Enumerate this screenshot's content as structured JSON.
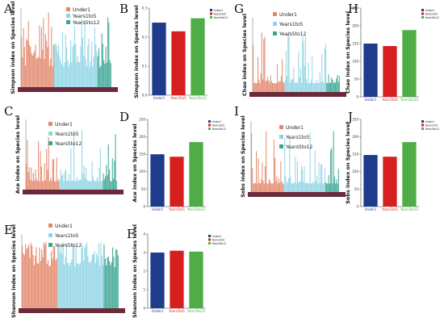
{
  "chart_data": [
    {
      "panel": "A",
      "type": "bar",
      "ylabel": "Simpson index on Species level",
      "legend": [
        "Under1",
        "Years1to5",
        "Years5to12"
      ],
      "colors": [
        "#e4866a",
        "#8fd4e4",
        "#3aa592"
      ],
      "legend_placement": "top"
    },
    {
      "panel": "B",
      "type": "bar",
      "ylabel": "Simpson index on Species level",
      "categories": [
        "Under1",
        "Years1to5",
        "Years5to12"
      ],
      "values": [
        0.25,
        0.22,
        0.265
      ],
      "colors": [
        "#1f3b8c",
        "#d61f1f",
        "#4fad47"
      ],
      "yticks": [
        "0.0",
        "0.1",
        "0.2",
        "0.3"
      ],
      "ylim": [
        0,
        0.3
      ],
      "legend": [
        "Under1",
        "Years1to5",
        "Years5to12"
      ],
      "legend_placement": "top-right"
    },
    {
      "panel": "C",
      "type": "bar",
      "ylabel": "Ace index on Species level",
      "legend": [
        "Under1",
        "Years1to5",
        "Years5to12"
      ],
      "colors": [
        "#e4866a",
        "#8fd4e4",
        "#3aa592"
      ],
      "legend_placement": "top"
    },
    {
      "panel": "D",
      "type": "bar",
      "ylabel": "Ace index on Species level",
      "categories": [
        "Under1",
        "Years1to5",
        "Years5to12"
      ],
      "values": [
        150,
        143,
        185
      ],
      "colors": [
        "#1f3b8c",
        "#d61f1f",
        "#4fad47"
      ],
      "yticks": [
        "0",
        "50",
        "100",
        "150",
        "200",
        "250"
      ],
      "ylim": [
        0,
        250
      ],
      "legend": [
        "Under1",
        "Years1to5",
        "Years5to12"
      ],
      "legend_placement": "top-right"
    },
    {
      "panel": "E",
      "type": "bar",
      "ylabel": "Shannon index on Species level",
      "legend": [
        "Under1",
        "Years1to5",
        "Years5to12"
      ],
      "colors": [
        "#e4866a",
        "#8fd4e4",
        "#3aa592"
      ],
      "legend_placement": "top"
    },
    {
      "panel": "F",
      "type": "bar",
      "ylabel": "Shannon index on Species level",
      "categories": [
        "Under1",
        "Years1to5",
        "Years5to12"
      ],
      "values": [
        3.0,
        3.1,
        3.05
      ],
      "colors": [
        "#1f3b8c",
        "#d61f1f",
        "#4fad47"
      ],
      "yticks": [
        "0",
        "1",
        "2",
        "3",
        "4"
      ],
      "ylim": [
        0,
        4
      ],
      "legend": [
        "Under1",
        "Years1to5",
        "Years5to12"
      ],
      "legend_placement": "top-right"
    },
    {
      "panel": "G",
      "type": "bar",
      "ylabel": "Chao index on Species level",
      "legend": [
        "Under1",
        "Years1to5",
        "Years5to12"
      ],
      "colors": [
        "#e4866a",
        "#8fd4e4",
        "#3aa592"
      ],
      "legend_placement": "top"
    },
    {
      "panel": "H",
      "type": "bar",
      "ylabel": "Chao index on Species level",
      "categories": [
        "Under1",
        "Years1to5",
        "Years5to12"
      ],
      "values": [
        150,
        143,
        188
      ],
      "colors": [
        "#1f3b8c",
        "#d61f1f",
        "#4fad47"
      ],
      "yticks": [
        "0",
        "50",
        "100",
        "150",
        "200",
        "250"
      ],
      "ylim": [
        0,
        250
      ],
      "legend": [
        "Under1",
        "Years1to5",
        "Years5to12"
      ],
      "legend_placement": "top-right"
    },
    {
      "panel": "I",
      "type": "bar",
      "ylabel": "Sobs index on Species level",
      "legend": [
        "Under1",
        "Years1to5",
        "Years5to12"
      ],
      "colors": [
        "#e4866a",
        "#8fd4e4",
        "#3aa592"
      ],
      "legend_placement": "top"
    },
    {
      "panel": "J",
      "type": "bar",
      "ylabel": "Sobs index on Species level",
      "categories": [
        "Under1",
        "Years1to5",
        "Years5to12"
      ],
      "values": [
        148,
        143,
        185
      ],
      "colors": [
        "#1f3b8c",
        "#d61f1f",
        "#4fad47"
      ],
      "yticks": [
        "0",
        "50",
        "100",
        "150",
        "200",
        "250"
      ],
      "ylim": [
        0,
        250
      ],
      "legend": [
        "Under1",
        "Years1to5",
        "Years5to12"
      ],
      "legend_placement": "top-right"
    }
  ]
}
